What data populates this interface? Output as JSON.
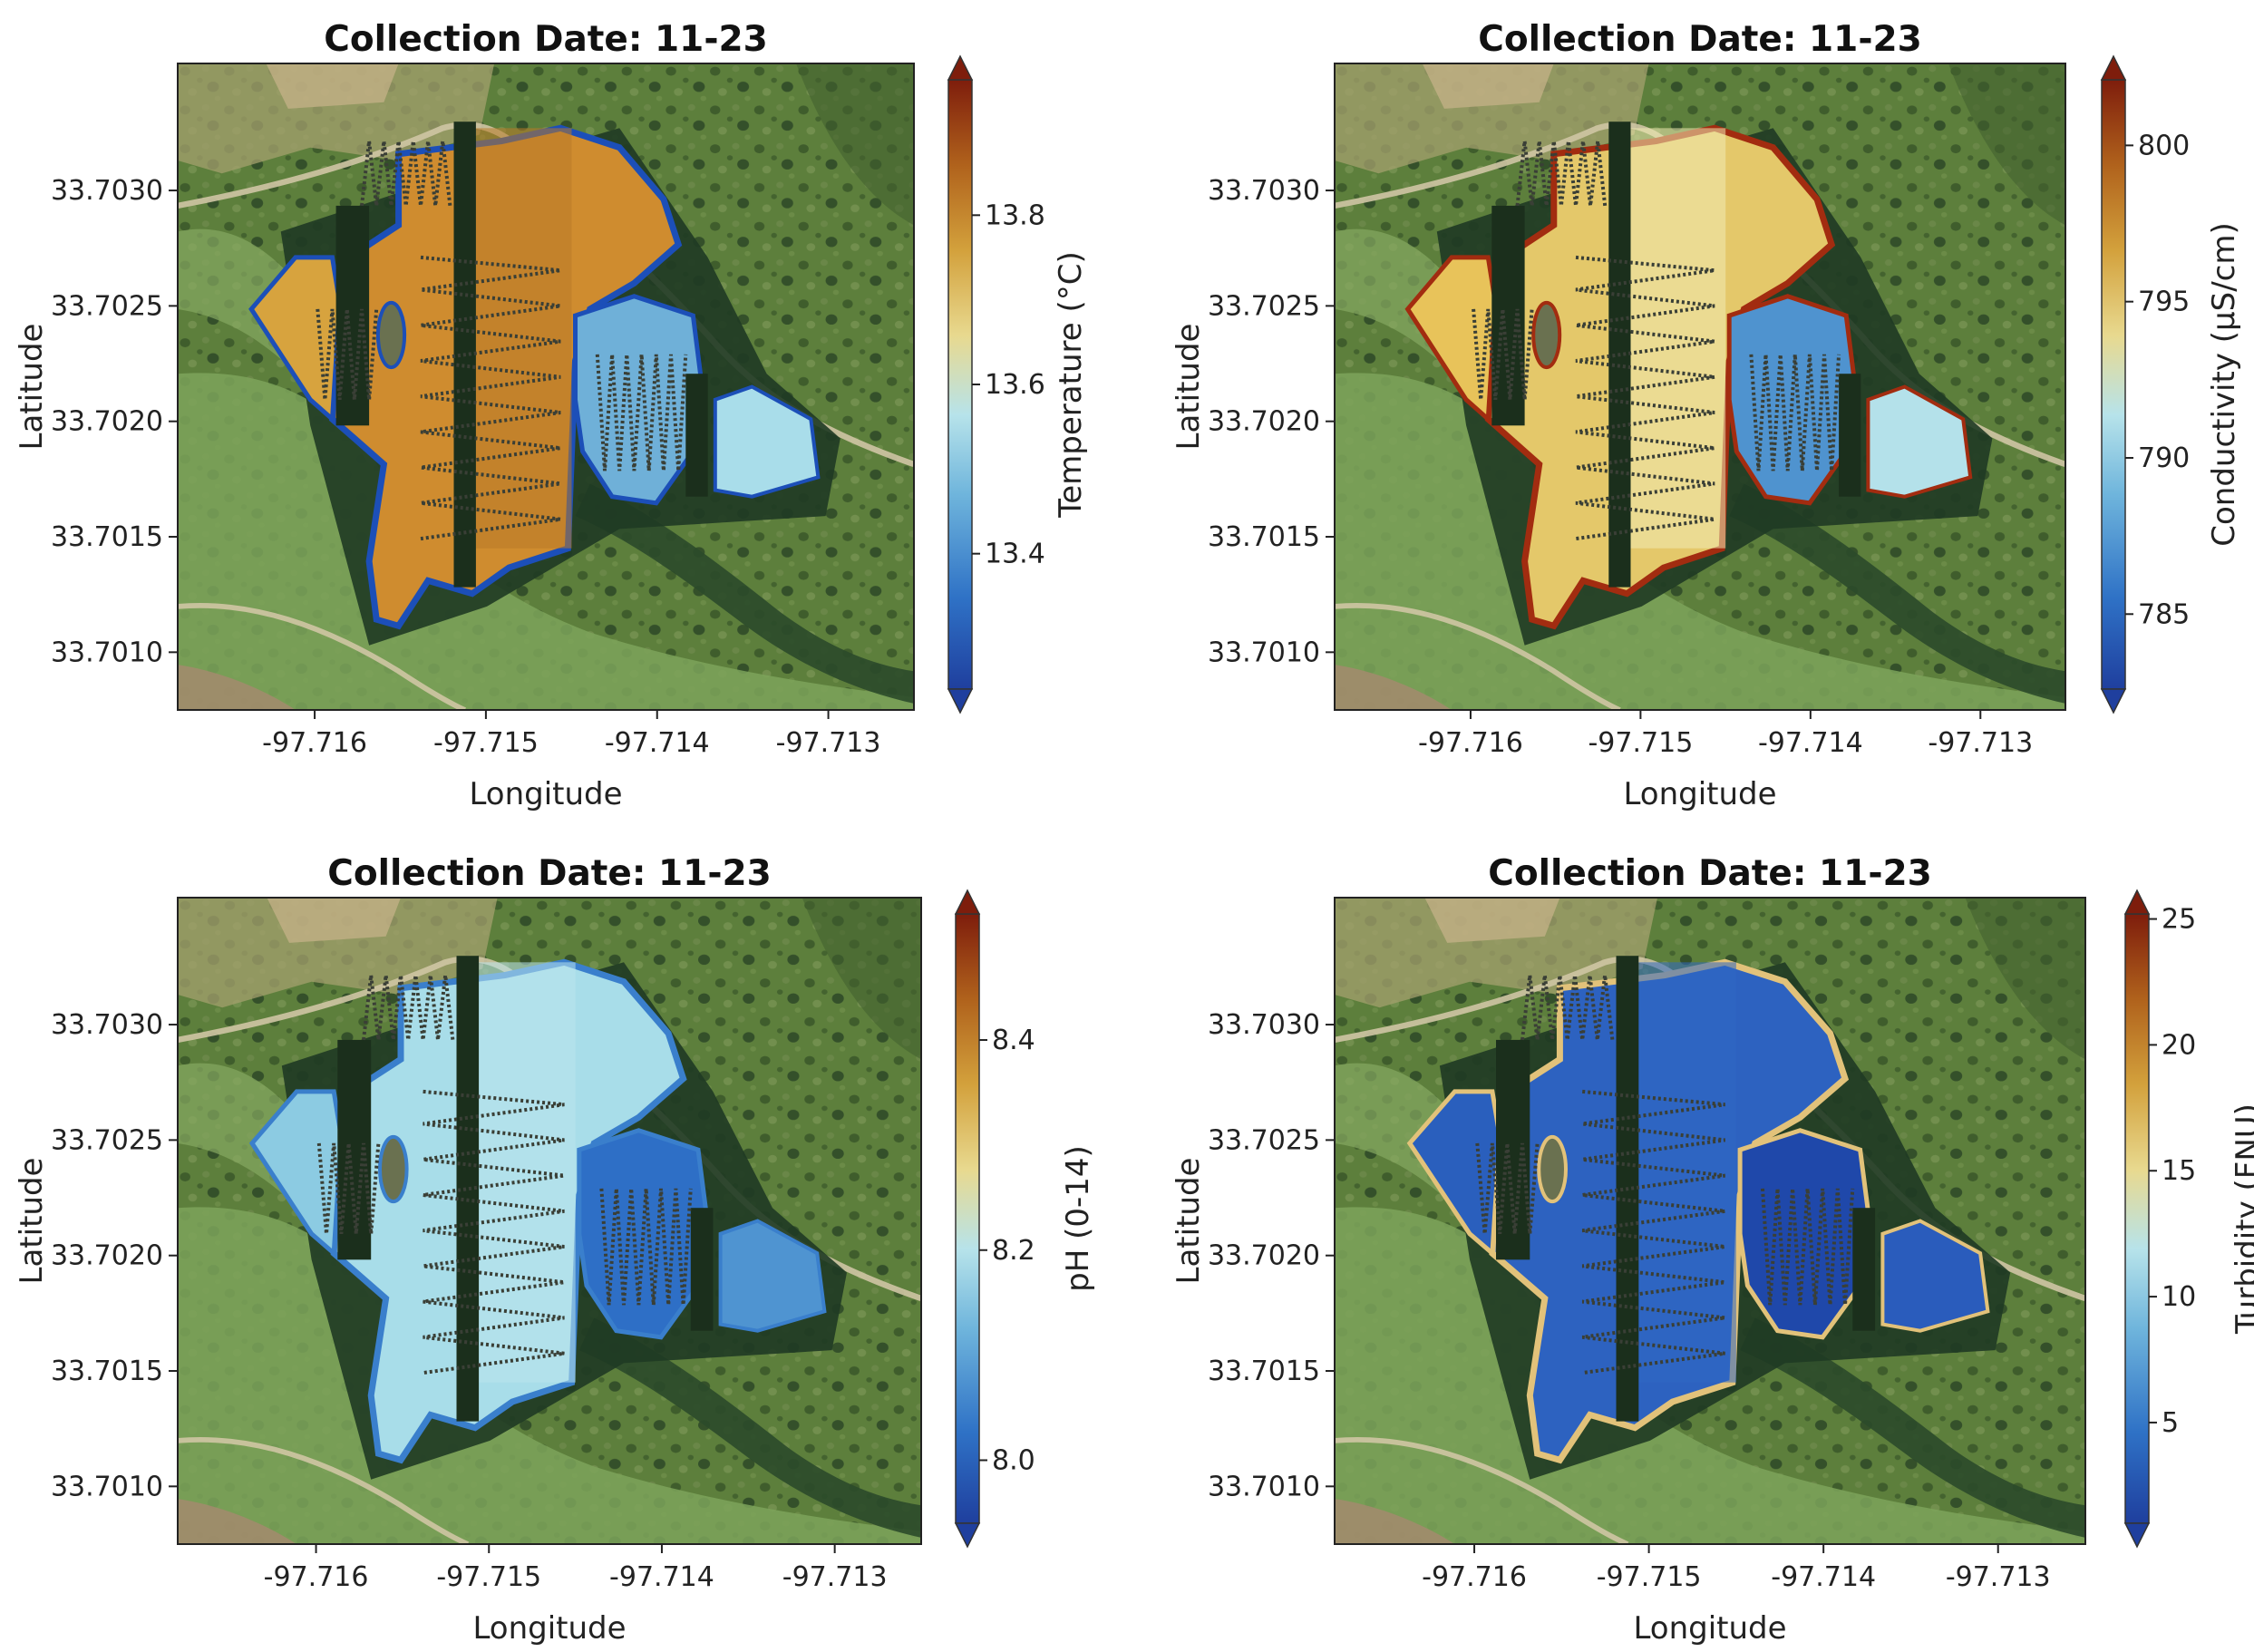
{
  "chart_data": [
    {
      "type": "heatmap",
      "title": "Collection Date: 11-23",
      "xlabel": "Longitude",
      "ylabel": "Latitude",
      "xticks": [
        "-97.716",
        "-97.715",
        "-97.714",
        "-97.713"
      ],
      "yticks": [
        "33.7030",
        "33.7025",
        "33.7020",
        "33.7015",
        "33.7010"
      ],
      "xlim": [
        -97.7168,
        -97.7125
      ],
      "ylim": [
        33.70075,
        33.70355
      ],
      "colorbar": {
        "label": "Temperature (°C)",
        "range": [
          13.24,
          13.96
        ],
        "ticks": [
          "13.4",
          "13.6",
          "13.8"
        ],
        "tick_values": [
          13.4,
          13.6,
          13.8
        ]
      },
      "palette": "wq"
    },
    {
      "type": "heatmap",
      "title": "Collection Date: 11-23",
      "xlabel": "Longitude",
      "ylabel": "Latitude",
      "xticks": [
        "-97.716",
        "-97.715",
        "-97.714",
        "-97.713"
      ],
      "yticks": [
        "33.7030",
        "33.7025",
        "33.7020",
        "33.7015",
        "33.7010"
      ],
      "xlim": [
        -97.7168,
        -97.7125
      ],
      "ylim": [
        33.70075,
        33.70355
      ],
      "colorbar": {
        "label": "Conductivity (µS/cm)",
        "range": [
          782.6,
          802.1
        ],
        "ticks": [
          "785",
          "790",
          "795",
          "800"
        ],
        "tick_values": [
          785,
          790,
          795,
          800
        ]
      },
      "palette": "cond"
    },
    {
      "type": "heatmap",
      "title": "Collection Date: 11-23",
      "xlabel": "Longitude",
      "ylabel": "Latitude",
      "xticks": [
        "-97.716",
        "-97.715",
        "-97.714",
        "-97.713"
      ],
      "yticks": [
        "33.7030",
        "33.7025",
        "33.7020",
        "33.7015",
        "33.7010"
      ],
      "xlim": [
        -97.7168,
        -97.7125
      ],
      "ylim": [
        33.70075,
        33.70355
      ],
      "colorbar": {
        "label": "pH (0-14)",
        "range": [
          7.94,
          8.52
        ],
        "ticks": [
          "8.0",
          "8.2",
          "8.4"
        ],
        "tick_values": [
          8.0,
          8.2,
          8.4
        ]
      },
      "palette": "ph"
    },
    {
      "type": "heatmap",
      "title": "Collection Date: 11-23",
      "xlabel": "Longitude",
      "ylabel": "Latitude",
      "xticks": [
        "-97.716",
        "-97.715",
        "-97.714",
        "-97.713"
      ],
      "yticks": [
        "33.7030",
        "33.7025",
        "33.7020",
        "33.7015",
        "33.7010"
      ],
      "xlim": [
        -97.7168,
        -97.7125
      ],
      "ylim": [
        33.70075,
        33.70355
      ],
      "colorbar": {
        "label": "Turbidity (FNU)",
        "range": [
          1.0,
          25.2
        ],
        "ticks": [
          "5",
          "10",
          "15",
          "20",
          "25"
        ],
        "tick_values": [
          5,
          10,
          15,
          20,
          25
        ]
      },
      "palette": "turb"
    }
  ]
}
